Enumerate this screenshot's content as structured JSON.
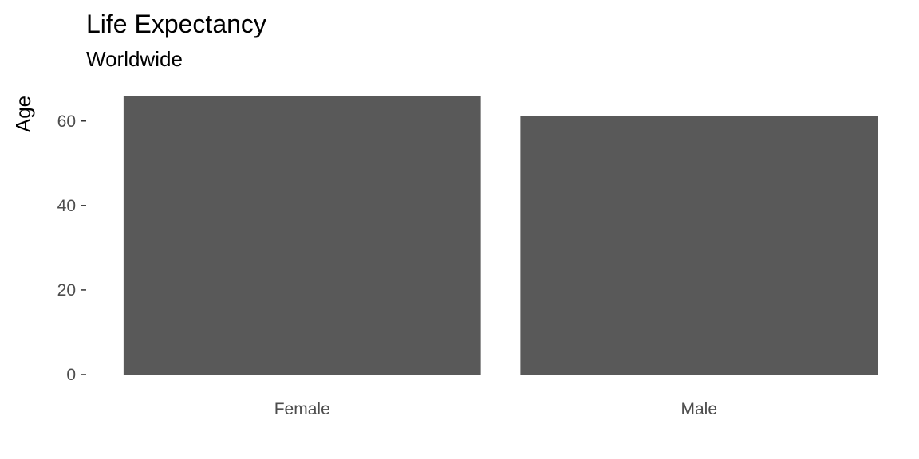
{
  "chart_data": {
    "type": "bar",
    "title": "Life Expectancy",
    "subtitle": "Worldwide",
    "xlabel": "",
    "ylabel": "Age",
    "categories": [
      "Female",
      "Male"
    ],
    "values": [
      65.8,
      61.2
    ],
    "ylim": [
      0,
      65.8
    ],
    "yticks": [
      0,
      20,
      40,
      60
    ],
    "ytick_labels": [
      "0",
      "20",
      "40",
      "60"
    ],
    "bar_color": "#595959",
    "grid": false,
    "legend": "none"
  }
}
